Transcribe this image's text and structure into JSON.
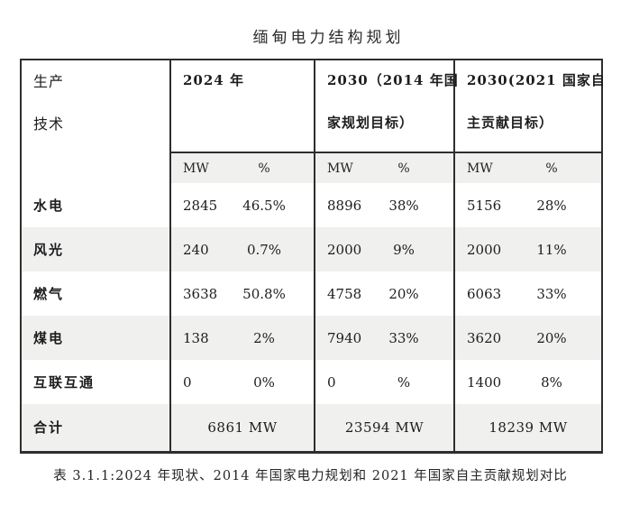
{
  "title": "缅甸电力结构规划",
  "table": {
    "header": {
      "production_line1": "生产",
      "production_line2": "技术",
      "y2024": "2024 年",
      "plan2014_line1": "2030（2014 年国",
      "plan2014_line2": "家规划目标）",
      "ndc2021_line1": "2030(2021 国家自",
      "ndc2021_line2": "主贡献目标）"
    },
    "units": {
      "mw": "MW",
      "pct": "%"
    },
    "rows": [
      {
        "label": "水电",
        "c2": {
          "mw": "2845",
          "pct": "46.5%"
        },
        "c3": {
          "mw": "8896",
          "pct": "38%"
        },
        "c4": {
          "mw": "5156",
          "pct": "28%"
        }
      },
      {
        "label": "风光",
        "c2": {
          "mw": "240",
          "pct": "0.7%"
        },
        "c3": {
          "mw": "2000",
          "pct": "9%"
        },
        "c4": {
          "mw": "2000",
          "pct": "11%"
        }
      },
      {
        "label": "燃气",
        "c2": {
          "mw": "3638",
          "pct": "50.8%"
        },
        "c3": {
          "mw": "4758",
          "pct": "20%"
        },
        "c4": {
          "mw": "6063",
          "pct": "33%"
        }
      },
      {
        "label": "煤电",
        "c2": {
          "mw": "138",
          "pct": "2%"
        },
        "c3": {
          "mw": "7940",
          "pct": "33%"
        },
        "c4": {
          "mw": "3620",
          "pct": "20%"
        }
      },
      {
        "label": "互联互通",
        "c2": {
          "mw": "0",
          "pct": "0%"
        },
        "c3": {
          "mw": "0",
          "pct": "%"
        },
        "c4": {
          "mw": "1400",
          "pct": "8%"
        }
      }
    ],
    "total": {
      "label": "合计",
      "c2": "6861 MW",
      "c3": "23594 MW",
      "c4": "18239 MW"
    }
  },
  "caption": "表 3.1.1:2024 年现状、2014 年国家电力规划和 2021 年国家自主贡献规划对比",
  "colors": {
    "zebra": "#f0f0ef",
    "border": "#2e2e2e",
    "text": "#1d1d1f"
  }
}
